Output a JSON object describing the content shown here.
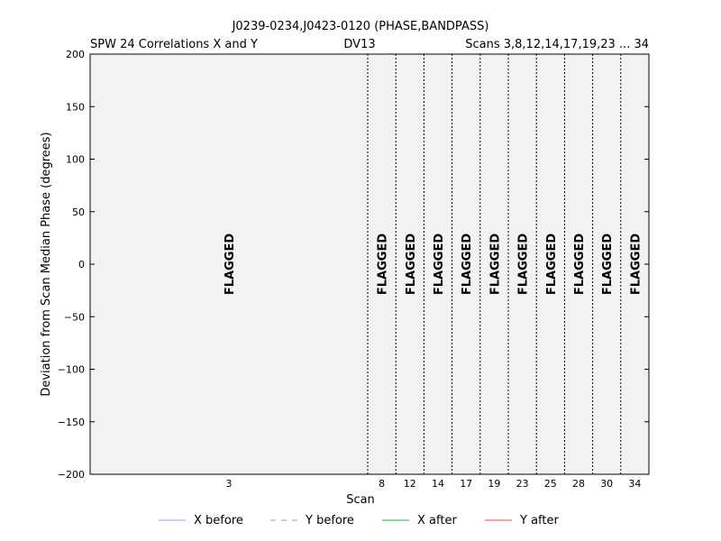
{
  "chart_data": {
    "type": "line",
    "title": "J0239-0234,J0423-0120 (PHASE,BANDPASS)",
    "subtitle_left": "SPW 24 Correlations X and Y",
    "subtitle_center": "DV13",
    "subtitle_right": "Scans 3,8,12,14,17,19,23 ... 34",
    "xlabel": "Scan",
    "ylabel": "Deviation from Scan Median Phase (degrees)",
    "ylim": [
      -200,
      200
    ],
    "yticks": [
      "200",
      "150",
      "100",
      "50",
      "0",
      "−50",
      "−100",
      "−150",
      "−200"
    ],
    "scans": [
      "3",
      "8",
      "12",
      "14",
      "17",
      "19",
      "23",
      "25",
      "28",
      "30",
      "34"
    ],
    "flag_label": "FLAGGED",
    "legend": [
      {
        "name": "X before",
        "color": "#b0b4d8",
        "style": "solid"
      },
      {
        "name": "Y before",
        "color": "#b0b0b0",
        "style": "dashed"
      },
      {
        "name": "X after",
        "color": "#5cb85c",
        "style": "solid"
      },
      {
        "name": "Y after",
        "color": "#f07060",
        "style": "solid"
      }
    ],
    "plot_background": "#f2f2f2"
  }
}
